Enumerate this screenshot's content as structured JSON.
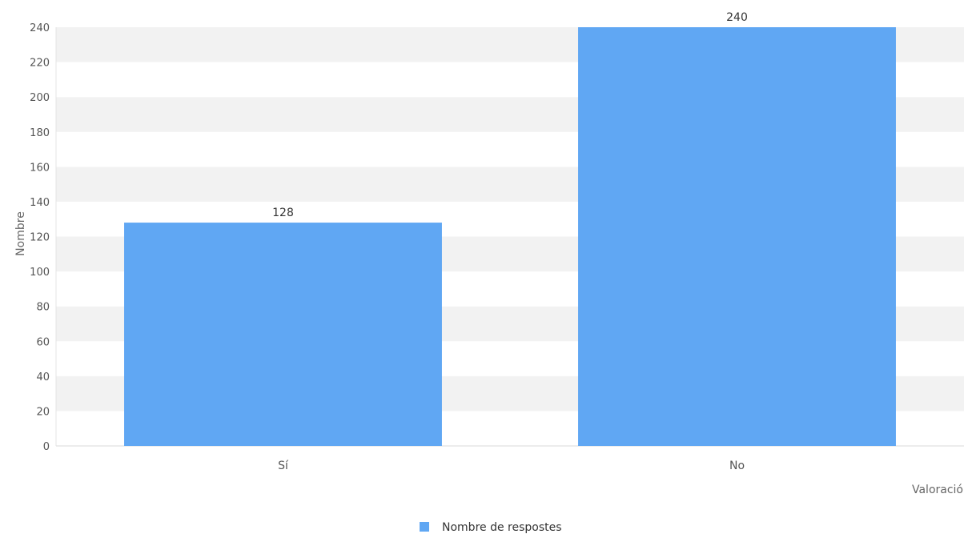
{
  "chart_data": {
    "type": "bar",
    "categories": [
      "Sí",
      "No"
    ],
    "series": [
      {
        "name": "Nombre de respostes",
        "values": [
          128,
          240
        ],
        "color": "#60a7f3"
      }
    ],
    "xlabel": "Valoració",
    "ylabel": "Nombre",
    "ylim": [
      0,
      240
    ],
    "yticks": [
      0,
      20,
      40,
      60,
      80,
      100,
      120,
      140,
      160,
      180,
      200,
      220,
      240
    ],
    "data_labels": true,
    "grid": "alternating horizontal bands",
    "band_color": "#f2f2f2",
    "legend_position": "bottom-center"
  }
}
